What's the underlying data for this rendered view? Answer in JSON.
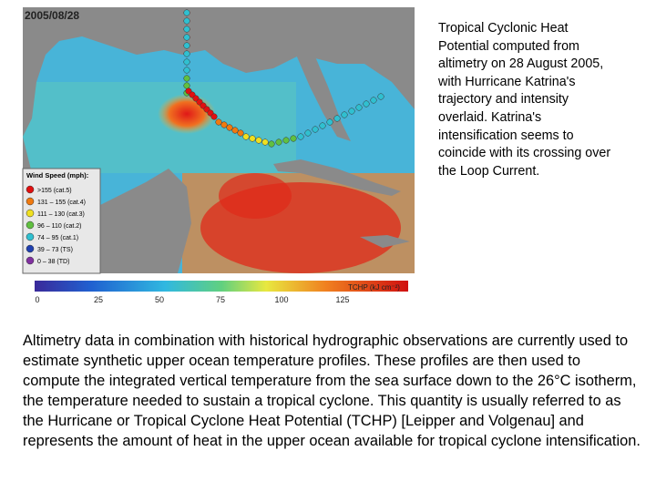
{
  "figure": {
    "date": "2005/08/28",
    "legend": {
      "title": "Wind Speed (mph):",
      "entries": [
        ">155 (cat.5)",
        "131 – 155 (cat.4)",
        "111 – 130 (cat.3)",
        "96 – 110 (cat.2)",
        "74 – 95 (cat.1)",
        "39 – 73 (TS)",
        "0 – 38 (TD)"
      ]
    },
    "colorbar": {
      "ticks": [
        "0",
        "25",
        "50",
        "75",
        "100",
        "125"
      ],
      "label": "TCHP (kJ cm⁻²)"
    }
  },
  "caption": "Tropical Cyclonic Heat Potential computed from altimetry on 28 August 2005, with Hurricane Katrina's trajectory and intensity overlaid. Katrina's intensification seems to coincide with its crossing over the Loop Current.",
  "body": "Altimetry data in combination with historical hydrographic observations are currently used to estimate synthetic upper ocean temperature profiles. These profiles are then used to compute the integrated vertical temperature from the sea surface down to the 26°C isotherm, the temperature needed to sustain a tropical cyclone. This quantity is usually referred to as the Hurricane or Tropical Cyclone Heat Potential (TCHP) [Leipper and Volgenau] and represents the amount of heat in the upper ocean available for tropical cyclone intensification."
}
